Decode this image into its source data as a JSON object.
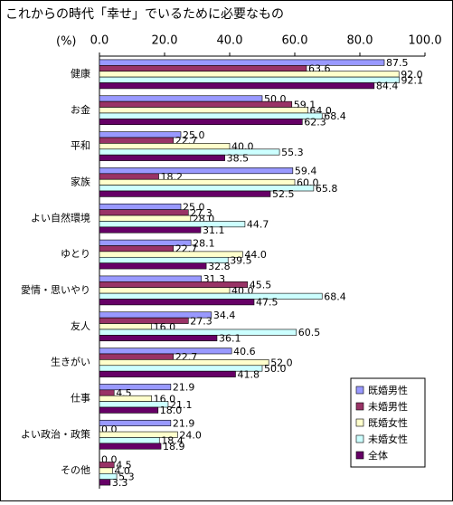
{
  "chart_data": {
    "type": "hbar",
    "title": "これからの時代「幸せ」でいるために必要なもの",
    "unit_label": "(%)",
    "categories": [
      "健康",
      "お金",
      "平和",
      "家族",
      "よい自然環境",
      "ゆとり",
      "愛情・思いやり",
      "友人",
      "生きがい",
      "仕事",
      "よい政治・政策",
      "その他"
    ],
    "series": [
      {
        "name": "既婚男性",
        "color": "#9999ff",
        "values": [
          87.5,
          50,
          25,
          59.4,
          25,
          28.1,
          31.3,
          34.4,
          40.6,
          21.9,
          21.9,
          0
        ],
        "value_labels": [
          "87.5",
          "50.0",
          "25.0",
          "59.4",
          "25.0",
          "28.1",
          "31.3",
          "34.4",
          "40.6",
          "21.9",
          "21.9",
          "0.0"
        ]
      },
      {
        "name": "未婚男性",
        "color": "#993366",
        "values": [
          63.6,
          59.1,
          22.7,
          18.2,
          27.3,
          22.7,
          45.5,
          27.3,
          22.7,
          4.5,
          0,
          4.5
        ],
        "value_labels": [
          "63.6",
          "59.1",
          "22.7",
          "18.2",
          "27.3",
          "22.7",
          "45.5",
          "27.3",
          "22.7",
          "4.5",
          "0.0",
          "4.5"
        ]
      },
      {
        "name": "既婚女性",
        "color": "#ffffcc",
        "values": [
          92,
          64,
          40,
          60,
          28,
          44,
          40,
          16,
          52,
          16,
          24,
          4
        ],
        "value_labels": [
          "92.0",
          "64.0",
          "40.0",
          "60.0",
          "28.0",
          "44.0",
          "40.0",
          "16.0",
          "52.0",
          "16.0",
          "24.0",
          "4.0"
        ]
      },
      {
        "name": "未婚女性",
        "color": "#ccffff",
        "values": [
          92.1,
          68.4,
          55.3,
          65.8,
          44.7,
          39.5,
          68.4,
          60.5,
          50,
          21.1,
          18.4,
          5.3
        ],
        "value_labels": [
          "92.1",
          "68.4",
          "55.3",
          "65.8",
          "44.7",
          "39.5",
          "68.4",
          "60.5",
          "50.0",
          "21.1",
          "18.4",
          "5.3"
        ]
      },
      {
        "name": "全体",
        "color": "#660066",
        "values": [
          84.4,
          62.3,
          38.5,
          52.5,
          31.1,
          32.8,
          47.5,
          36.1,
          41.8,
          18,
          18.9,
          3.3
        ],
        "value_labels": [
          "84.4",
          "62.3",
          "38.5",
          "52.5",
          "31.1",
          "32.8",
          "47.5",
          "36.1",
          "41.8",
          "18.0",
          "18.9",
          "3.3"
        ]
      }
    ],
    "xlim": [
      0,
      100
    ],
    "xticks": [
      {
        "value": 0,
        "label": "0.0"
      },
      {
        "value": 20,
        "label": "20.0"
      },
      {
        "value": 40,
        "label": "40.0"
      },
      {
        "value": 60,
        "label": "60.0"
      },
      {
        "value": 80,
        "label": "80.0"
      },
      {
        "value": 100,
        "label": "100.0"
      }
    ],
    "grid": false,
    "legend": "bottom-right"
  }
}
